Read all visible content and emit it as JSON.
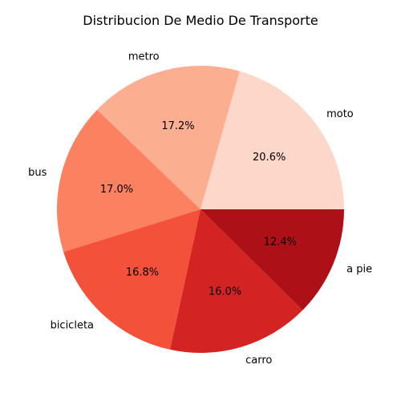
{
  "chart_data": {
    "type": "pie",
    "title": "Distribucion De Medio De Transporte",
    "categories": [
      "moto",
      "metro",
      "bus",
      "bicicleta",
      "carro",
      "a pie"
    ],
    "values": [
      20.6,
      17.2,
      17.0,
      16.8,
      16.0,
      12.4
    ],
    "value_labels": [
      "20.6%",
      "17.2%",
      "17.0%",
      "16.8%",
      "16.0%",
      "12.4%"
    ],
    "colors": [
      "#fdd7c9",
      "#fcae91",
      "#fb8161",
      "#f35139",
      "#d42323",
      "#ad1016"
    ],
    "start_angle_deg": 0,
    "direction": "counterclockwise",
    "legend": "none"
  }
}
